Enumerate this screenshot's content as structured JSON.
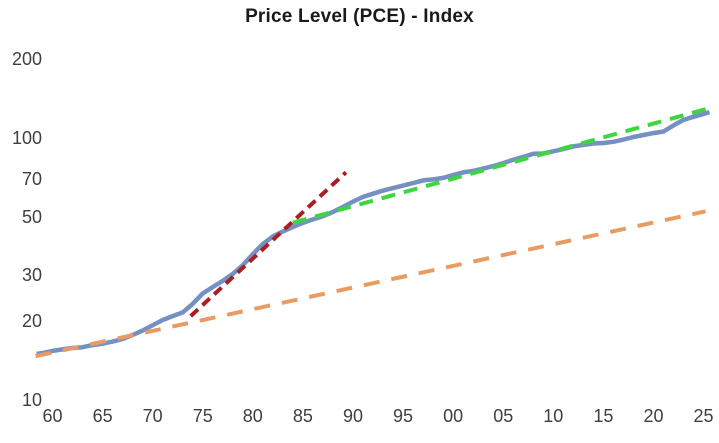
{
  "chart_data": {
    "type": "line",
    "title": "Price Level (PCE) - Index",
    "xlabel": "",
    "ylabel": "",
    "y_scale": "log",
    "grid": false,
    "legend": "none",
    "y_ticks": [
      200,
      100,
      70,
      50,
      30,
      20,
      10
    ],
    "x_ticks": [
      "60",
      "65",
      "70",
      "75",
      "80",
      "85",
      "90",
      "95",
      "00",
      "05",
      "10",
      "15",
      "20",
      "25"
    ],
    "x_tick_years": [
      1960,
      1965,
      1970,
      1975,
      1980,
      1985,
      1990,
      1995,
      2000,
      2005,
      2010,
      2015,
      2020,
      2025
    ],
    "xlim": [
      1958,
      2026.5
    ],
    "ylim": [
      10,
      230
    ],
    "series": [
      {
        "name": "PCE price level (blue solid line)",
        "color": "#7591c3",
        "line_style": "solid",
        "points": [
          [
            1958.4,
            15.0
          ],
          [
            1959,
            15.1
          ],
          [
            1960,
            15.4
          ],
          [
            1961,
            15.6
          ],
          [
            1962,
            15.8
          ],
          [
            1963,
            15.9
          ],
          [
            1964,
            16.2
          ],
          [
            1965,
            16.4
          ],
          [
            1966,
            16.7
          ],
          [
            1967,
            17.1
          ],
          [
            1968,
            17.7
          ],
          [
            1969,
            18.4
          ],
          [
            1970,
            19.3
          ],
          [
            1971,
            20.2
          ],
          [
            1972,
            20.9
          ],
          [
            1973,
            21.6
          ],
          [
            1974,
            23.3
          ],
          [
            1975,
            25.5
          ],
          [
            1976,
            27.0
          ],
          [
            1977,
            28.5
          ],
          [
            1978,
            30.3
          ],
          [
            1979,
            32.7
          ],
          [
            1980,
            36.0
          ],
          [
            1981,
            39.4
          ],
          [
            1982,
            42.1
          ],
          [
            1983,
            44.0
          ],
          [
            1984,
            45.8
          ],
          [
            1985,
            47.4
          ],
          [
            1986,
            48.9
          ],
          [
            1987,
            50.3
          ],
          [
            1988,
            52.2
          ],
          [
            1989,
            54.6
          ],
          [
            1990,
            57.2
          ],
          [
            1991,
            59.6
          ],
          [
            1992,
            61.3
          ],
          [
            1993,
            63.0
          ],
          [
            1994,
            64.4
          ],
          [
            1995,
            65.8
          ],
          [
            1996,
            67.3
          ],
          [
            1997,
            68.9
          ],
          [
            1998,
            69.5
          ],
          [
            1999,
            70.4
          ],
          [
            2000,
            72.2
          ],
          [
            2001,
            73.9
          ],
          [
            2002,
            74.9
          ],
          [
            2003,
            76.4
          ],
          [
            2004,
            78.1
          ],
          [
            2005,
            80.2
          ],
          [
            2006,
            82.6
          ],
          [
            2007,
            84.7
          ],
          [
            2008,
            87.0
          ],
          [
            2009,
            87.3
          ],
          [
            2010,
            89.0
          ],
          [
            2011,
            90.7
          ],
          [
            2012,
            92.9
          ],
          [
            2013,
            94.1
          ],
          [
            2014,
            95.3
          ],
          [
            2015,
            95.7
          ],
          [
            2016,
            96.7
          ],
          [
            2017,
            98.6
          ],
          [
            2018,
            100.9
          ],
          [
            2019,
            102.7
          ],
          [
            2020,
            104.4
          ],
          [
            2021,
            105.9
          ],
          [
            2022,
            111.7
          ],
          [
            2023,
            117.2
          ],
          [
            2024,
            120.5
          ],
          [
            2025,
            123.5
          ],
          [
            2025.6,
            125.5
          ]
        ]
      },
      {
        "name": "Red dashed trend, 1974-1989 (~8%/yr)",
        "color": "#ab1f23",
        "line_style": "dashed-short",
        "points": [
          [
            1973.8,
            20.9
          ],
          [
            1989.3,
            74.0
          ]
        ]
      },
      {
        "name": "Green dashed trend, 1984-2026 (~2.4%/yr)",
        "color": "#3ed63e",
        "line_style": "dashed",
        "points": [
          [
            1984.0,
            47.5
          ],
          [
            2025.9,
            131.0
          ]
        ]
      },
      {
        "name": "Orange dashed trend, 1959 extended (~1.9%/yr)",
        "color": "#e89b63",
        "line_style": "dashed-long",
        "points": [
          [
            1958.3,
            14.7
          ],
          [
            2025.2,
            52.5
          ]
        ]
      }
    ]
  }
}
